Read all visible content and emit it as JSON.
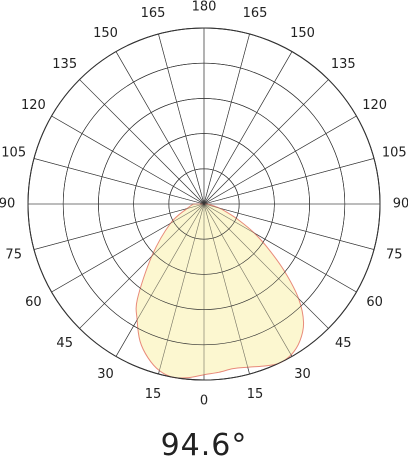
{
  "chart_data": {
    "type": "polar-line",
    "title": "",
    "angle_labels_left": [
      "180",
      "165",
      "150",
      "135",
      "120",
      "105",
      "90",
      "75",
      "60",
      "45",
      "30",
      "15",
      "0"
    ],
    "angle_labels_right": [
      "165",
      "150",
      "135",
      "120",
      "105",
      "90",
      "75",
      "60",
      "45",
      "30",
      "15"
    ],
    "angle_values_left": [
      180,
      165,
      150,
      135,
      120,
      105,
      90,
      75,
      60,
      45,
      30,
      15,
      0
    ],
    "angle_values_right": [
      165,
      150,
      135,
      120,
      105,
      90,
      75,
      60,
      45,
      30,
      15
    ],
    "radial_rings": 5,
    "grid": true,
    "series": [
      {
        "points": [
          [
            -90,
            0.06
          ],
          [
            -75,
            0.1
          ],
          [
            -60,
            0.22
          ],
          [
            -45,
            0.42
          ],
          [
            -35,
            0.66
          ],
          [
            -30,
            0.76
          ],
          [
            -25,
            0.86
          ],
          [
            -20,
            0.93
          ],
          [
            -15,
            0.98
          ],
          [
            -10,
            1.0
          ],
          [
            -5,
            0.99
          ],
          [
            0,
            0.97
          ],
          [
            5,
            0.96
          ],
          [
            10,
            0.95
          ],
          [
            15,
            0.96
          ],
          [
            20,
            0.98
          ],
          [
            25,
            1.0
          ],
          [
            30,
            0.99
          ],
          [
            35,
            0.95
          ],
          [
            40,
            0.88
          ],
          [
            45,
            0.76
          ],
          [
            50,
            0.6
          ],
          [
            55,
            0.45
          ],
          [
            60,
            0.33
          ],
          [
            65,
            0.22
          ],
          [
            70,
            0.14
          ],
          [
            75,
            0.09
          ],
          [
            80,
            0.05
          ],
          [
            90,
            0.02
          ]
        ]
      }
    ],
    "fill_color": "#fbf6c8",
    "stroke_color": "#e88a7a",
    "grid_color": "#333333"
  },
  "beam_angle": "94.6°"
}
